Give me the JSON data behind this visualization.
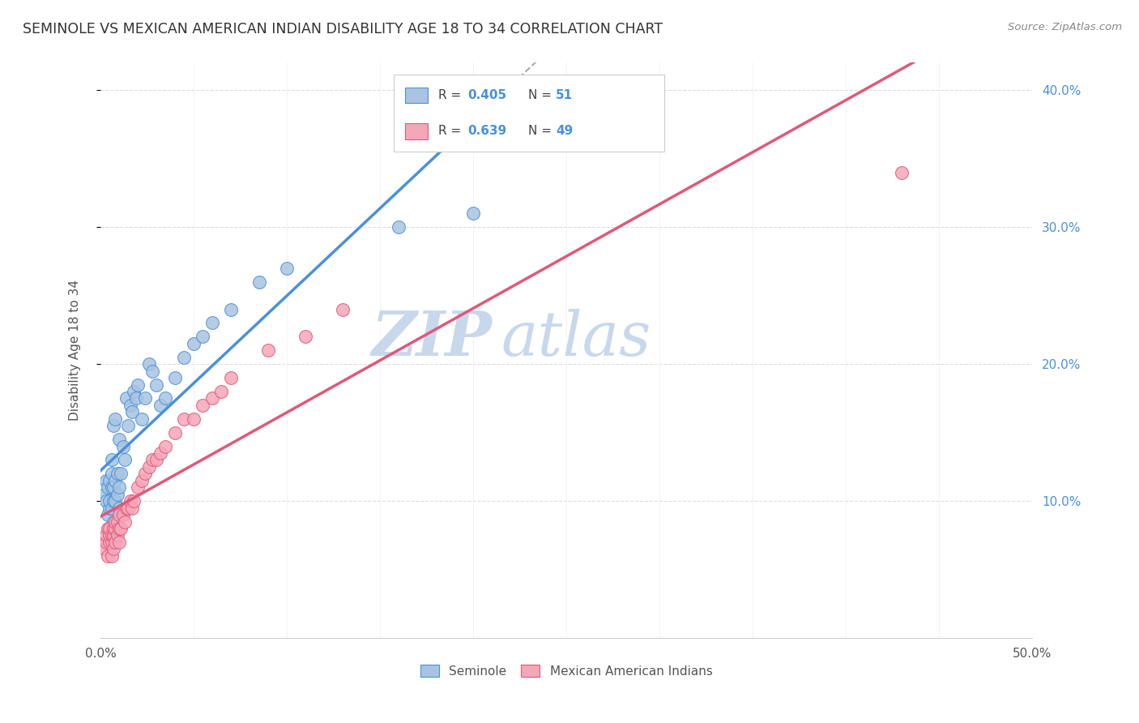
{
  "title": "SEMINOLE VS MEXICAN AMERICAN INDIAN DISABILITY AGE 18 TO 34 CORRELATION CHART",
  "source": "Source: ZipAtlas.com",
  "ylabel": "Disability Age 18 to 34",
  "xlim": [
    0.0,
    0.5
  ],
  "ylim": [
    0.0,
    0.42
  ],
  "xticks": [
    0.0,
    0.05,
    0.1,
    0.15,
    0.2,
    0.25,
    0.3,
    0.35,
    0.4,
    0.45,
    0.5
  ],
  "xticklabels_shown": {
    "0.0": "0.0%",
    "0.5": "50.0%"
  },
  "right_yticks": [
    0.1,
    0.2,
    0.3,
    0.4
  ],
  "right_yticklabels": [
    "10.0%",
    "20.0%",
    "30.0%",
    "40.0%"
  ],
  "yticks_grid": [
    0.1,
    0.2,
    0.3,
    0.4
  ],
  "seminole_color": "#a8c4e0",
  "mexican_color": "#f4a7b9",
  "seminole_R": 0.405,
  "seminole_N": 51,
  "mexican_R": 0.639,
  "mexican_N": 49,
  "trendline_blue_color": "#4a90d9",
  "trendline_pink_color": "#e05878",
  "trendline_dashed_color": "#aaaaaa",
  "watermark_text": "ZIP atlas",
  "watermark_color": "#c8d8ec",
  "legend_label_1": "Seminole",
  "legend_label_2": "Mexican American Indians",
  "seminole_x": [
    0.002,
    0.003,
    0.003,
    0.004,
    0.004,
    0.005,
    0.005,
    0.005,
    0.006,
    0.006,
    0.006,
    0.006,
    0.007,
    0.007,
    0.007,
    0.007,
    0.008,
    0.008,
    0.008,
    0.009,
    0.009,
    0.01,
    0.01,
    0.01,
    0.011,
    0.012,
    0.013,
    0.014,
    0.015,
    0.016,
    0.017,
    0.018,
    0.019,
    0.02,
    0.022,
    0.024,
    0.026,
    0.028,
    0.03,
    0.032,
    0.035,
    0.04,
    0.045,
    0.05,
    0.055,
    0.06,
    0.07,
    0.085,
    0.1,
    0.16,
    0.2
  ],
  "seminole_y": [
    0.105,
    0.1,
    0.115,
    0.09,
    0.11,
    0.095,
    0.1,
    0.115,
    0.095,
    0.11,
    0.12,
    0.13,
    0.085,
    0.1,
    0.11,
    0.155,
    0.1,
    0.115,
    0.16,
    0.105,
    0.12,
    0.095,
    0.11,
    0.145,
    0.12,
    0.14,
    0.13,
    0.175,
    0.155,
    0.17,
    0.165,
    0.18,
    0.175,
    0.185,
    0.16,
    0.175,
    0.2,
    0.195,
    0.185,
    0.17,
    0.175,
    0.19,
    0.205,
    0.215,
    0.22,
    0.23,
    0.24,
    0.26,
    0.27,
    0.3,
    0.31
  ],
  "mexican_x": [
    0.002,
    0.003,
    0.003,
    0.004,
    0.004,
    0.005,
    0.005,
    0.005,
    0.006,
    0.006,
    0.006,
    0.007,
    0.007,
    0.007,
    0.008,
    0.008,
    0.008,
    0.009,
    0.009,
    0.01,
    0.01,
    0.01,
    0.011,
    0.012,
    0.013,
    0.014,
    0.015,
    0.016,
    0.017,
    0.018,
    0.02,
    0.022,
    0.024,
    0.026,
    0.028,
    0.03,
    0.032,
    0.035,
    0.04,
    0.045,
    0.05,
    0.055,
    0.06,
    0.065,
    0.07,
    0.09,
    0.11,
    0.13,
    0.43
  ],
  "mexican_y": [
    0.065,
    0.07,
    0.075,
    0.06,
    0.08,
    0.07,
    0.075,
    0.08,
    0.06,
    0.07,
    0.075,
    0.065,
    0.075,
    0.08,
    0.07,
    0.08,
    0.085,
    0.075,
    0.085,
    0.07,
    0.08,
    0.09,
    0.08,
    0.09,
    0.085,
    0.095,
    0.095,
    0.1,
    0.095,
    0.1,
    0.11,
    0.115,
    0.12,
    0.125,
    0.13,
    0.13,
    0.135,
    0.14,
    0.15,
    0.16,
    0.16,
    0.17,
    0.175,
    0.18,
    0.19,
    0.21,
    0.22,
    0.24,
    0.34
  ]
}
